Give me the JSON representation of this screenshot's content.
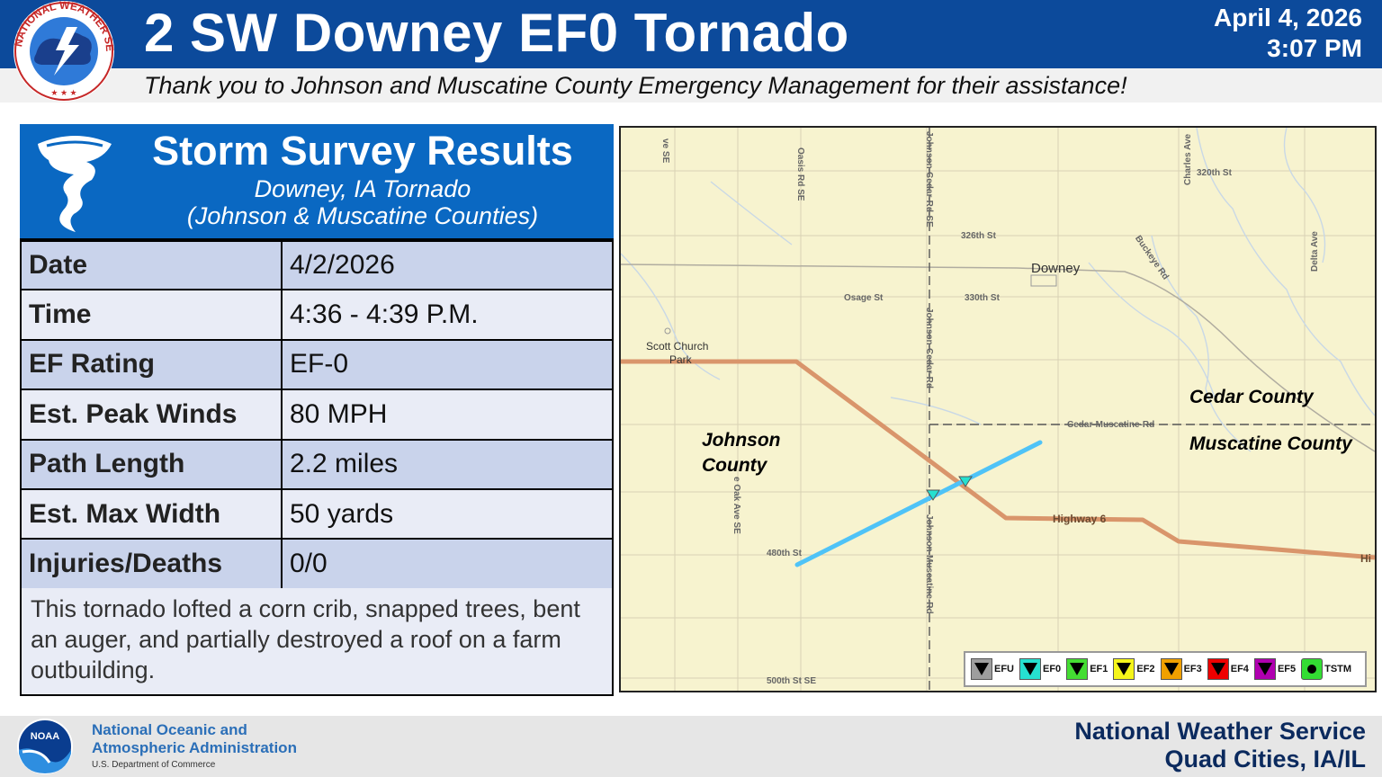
{
  "header": {
    "title": "2 SW Downey EF0 Tornado",
    "date": "April 4, 2026",
    "time": "3:07 PM",
    "thanks": "Thank you to Johnson and Muscatine County Emergency Management for their assistance!",
    "logo_text": "NATIONAL WEATHER SERVICE"
  },
  "results": {
    "title": "Storm Survey Results",
    "subtitle1": "Downey, IA Tornado",
    "subtitle2": "(Johnson & Muscatine Counties)",
    "rows": [
      {
        "label": "Date",
        "value": "4/2/2026"
      },
      {
        "label": "Time",
        "value": "4:36 - 4:39 P.M."
      },
      {
        "label": "EF Rating",
        "value": "EF-0"
      },
      {
        "label": "Est. Peak Winds",
        "value": "80 MPH"
      },
      {
        "label": "Path Length",
        "value": "2.2 miles"
      },
      {
        "label": "Est. Max Width",
        "value": "50 yards"
      },
      {
        "label": "Injuries/Deaths",
        "value": "0/0"
      }
    ],
    "description": "This tornado lofted a corn crib, snapped trees, bent an auger, and partially destroyed a roof on a farm outbuilding."
  },
  "map": {
    "labels": {
      "cedar_county": "Cedar County",
      "muscatine_county": "Muscatine County",
      "johnson_county_1": "Johnson",
      "johnson_county_2": "County",
      "downey": "Downey",
      "scott_church_1": "Scott Church",
      "scott_church_2": "Park"
    },
    "roads": {
      "highway6": "Highway 6",
      "hwy_edge": "Hi",
      "oasis": "Oasis Rd SE",
      "johnson_cedar": "Johnson-Cedar-Rd-SE",
      "johnson_cedar_2": "Johnson-Cedar-Rd",
      "johnson_muscatine": "Johnson-Muscatine-Rd",
      "st326": "326th St",
      "st330": "330th St",
      "st320": "320th St",
      "osage": "Osage St",
      "cedar_musc_rd": "Cedar-Muscatine-Rd",
      "buckeye": "Buckeye Rd",
      "charles": "Charles Ave",
      "delta": "Delta Ave",
      "ave_se": "ve SE",
      "st480": "480th St",
      "st500": "500th St SE",
      "oak_ave": "e Oak Ave SE"
    },
    "track_color": "#4fc3f7",
    "highway_color": "#d9956b",
    "legend": [
      {
        "label": "EFU",
        "color": "#9e9e9e",
        "shape": "triangle"
      },
      {
        "label": "EF0",
        "color": "#26e0d0",
        "shape": "triangle"
      },
      {
        "label": "EF1",
        "color": "#44dd33",
        "shape": "triangle"
      },
      {
        "label": "EF2",
        "color": "#f5f51a",
        "shape": "triangle"
      },
      {
        "label": "EF3",
        "color": "#f0a000",
        "shape": "triangle"
      },
      {
        "label": "EF4",
        "color": "#ee0000",
        "shape": "triangle"
      },
      {
        "label": "EF5",
        "color": "#b000b0",
        "shape": "triangle"
      },
      {
        "label": "TSTM",
        "color": "#33dd33",
        "shape": "dot"
      }
    ]
  },
  "footer": {
    "noaa_line1": "National Oceanic and",
    "noaa_line2": "Atmospheric Administration",
    "noaa_line3": "U.S. Department of Commerce",
    "noaa_logo_text": "NOAA",
    "nws_line1": "National Weather Service",
    "nws_line2": "Quad Cities, IA/IL"
  }
}
